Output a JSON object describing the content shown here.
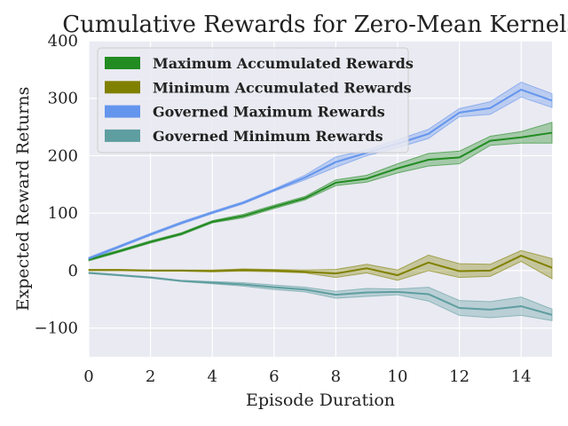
{
  "chart_data": {
    "type": "line",
    "title": "Cumulative Rewards for Zero-Mean Kernels",
    "xlabel": "Episode Duration",
    "ylabel": "Expected Reward Returns",
    "xlim": [
      0,
      15
    ],
    "ylim": [
      -150,
      400
    ],
    "xticks": [
      0,
      2,
      4,
      6,
      8,
      10,
      12,
      14
    ],
    "yticks": [
      -100,
      0,
      100,
      200,
      300,
      400
    ],
    "ytick_labels": [
      "−100",
      "0",
      "100",
      "200",
      "300",
      "400"
    ],
    "grid": true,
    "background": "#eaeaf2",
    "legend_position": "top-left",
    "x": [
      0,
      1,
      2,
      3,
      4,
      5,
      6,
      7,
      8,
      9,
      10,
      11,
      12,
      13,
      14,
      15
    ],
    "series": [
      {
        "name": "Maximum Accumulated Rewards",
        "color": "#228b22",
        "values": [
          19,
          34,
          50,
          64,
          85,
          95,
          111,
          126,
          153,
          160,
          178,
          193,
          197,
          226,
          232,
          240
        ],
        "lower": [
          17,
          32,
          48,
          62,
          83,
          92,
          108,
          123,
          148,
          154,
          170,
          182,
          186,
          218,
          222,
          222
        ],
        "upper": [
          21,
          36,
          52,
          66,
          87,
          98,
          114,
          129,
          158,
          166,
          186,
          204,
          208,
          234,
          242,
          258
        ]
      },
      {
        "name": "Minimum Accumulated Rewards",
        "color": "#808000",
        "values": [
          1,
          1,
          0,
          0,
          -1,
          1,
          0,
          -2,
          -5,
          4,
          -8,
          14,
          -1,
          0,
          26,
          5
        ],
        "lower": [
          0,
          0,
          -1,
          -1,
          -2,
          -1,
          -2,
          -4,
          -12,
          -4,
          -17,
          0,
          -12,
          -10,
          16,
          -14
        ],
        "upper": [
          2,
          2,
          1,
          1,
          1,
          3,
          2,
          1,
          2,
          11,
          1,
          27,
          12,
          11,
          35,
          21
        ]
      },
      {
        "name": "Governed Maximum Rewards",
        "color": "#6495ed",
        "values": [
          21,
          42,
          63,
          83,
          101,
          118,
          140,
          162,
          189,
          205,
          221,
          238,
          275,
          283,
          315,
          296
        ],
        "lower": [
          19,
          40,
          61,
          81,
          99,
          116,
          138,
          158,
          180,
          200,
          214,
          230,
          268,
          272,
          302,
          284
        ],
        "upper": [
          23,
          44,
          65,
          85,
          103,
          120,
          142,
          166,
          198,
          210,
          228,
          246,
          282,
          294,
          328,
          308
        ]
      },
      {
        "name": "Governed Minimum Rewards",
        "color": "#5f9ea0",
        "values": [
          -4,
          -8,
          -12,
          -18,
          -21,
          -24,
          -29,
          -33,
          -42,
          -38,
          -37,
          -41,
          -65,
          -68,
          -62,
          -77
        ],
        "lower": [
          -5,
          -9,
          -13,
          -19,
          -23,
          -27,
          -33,
          -37,
          -48,
          -45,
          -42,
          -53,
          -78,
          -82,
          -78,
          -87
        ],
        "upper": [
          -3,
          -7,
          -11,
          -17,
          -19,
          -21,
          -25,
          -29,
          -36,
          -31,
          -32,
          -29,
          -52,
          -54,
          -46,
          -67
        ]
      }
    ]
  }
}
